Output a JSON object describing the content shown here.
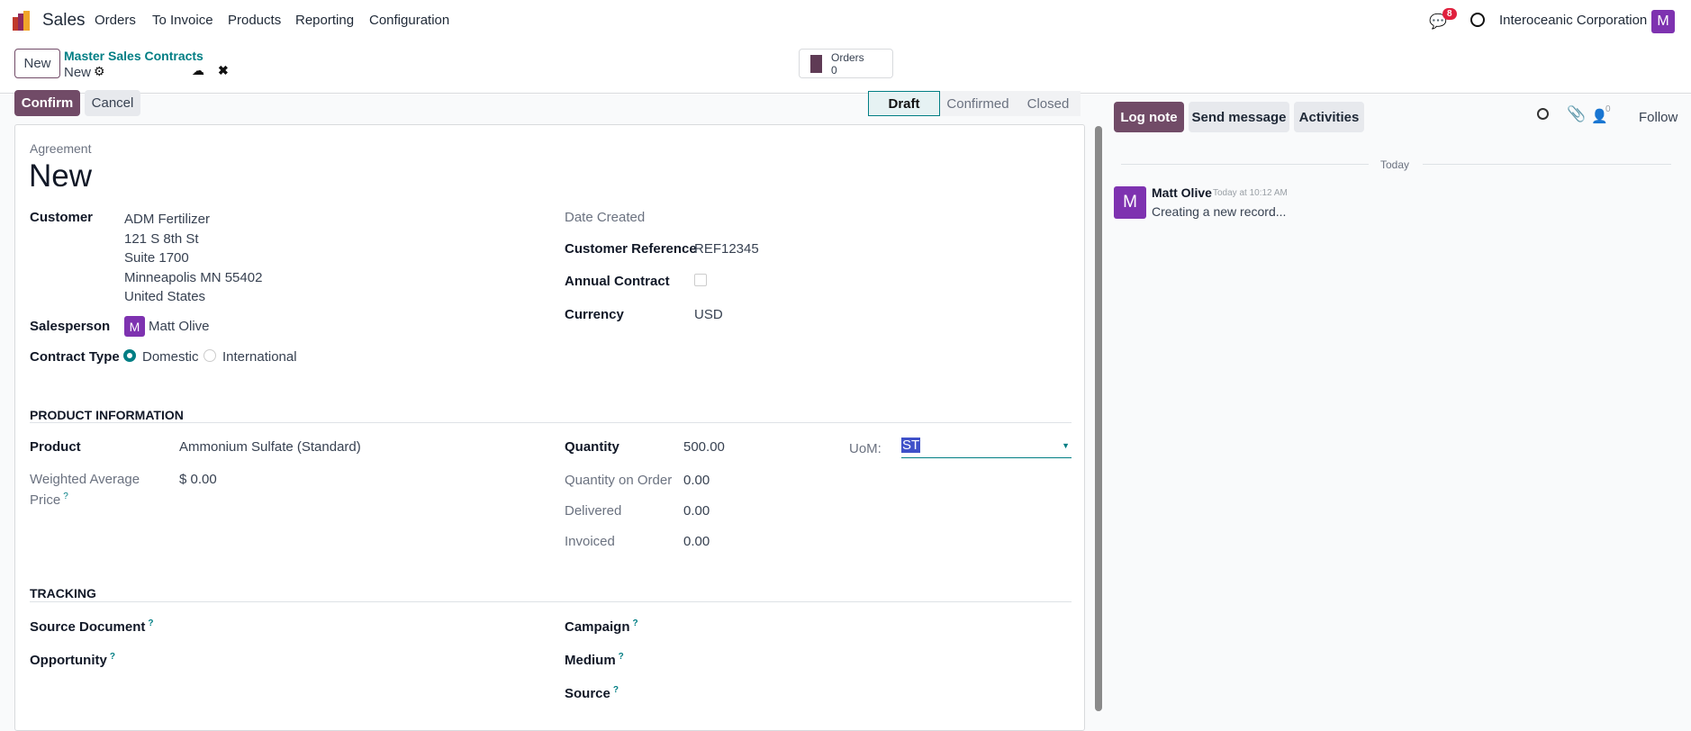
{
  "nav": {
    "app": "Sales",
    "menu": [
      "Orders",
      "To Invoice",
      "Products",
      "Reporting",
      "Configuration"
    ],
    "messages_badge": "8",
    "company": "Interoceanic Corporation",
    "user_initial": "M"
  },
  "control": {
    "new_button": "New",
    "breadcrumb_parent": "Master Sales Contracts",
    "breadcrumb_current": "New",
    "orders_label": "Orders",
    "orders_count": "0"
  },
  "actions": {
    "confirm": "Confirm",
    "cancel": "Cancel"
  },
  "status": {
    "stages": [
      "Draft",
      "Confirmed",
      "Closed"
    ],
    "current": "Draft"
  },
  "form": {
    "overline": "Agreement",
    "title": "New",
    "customer_label": "Customer",
    "customer_lines": [
      "ADM Fertilizer",
      "121 S 8th St",
      "Suite 1700",
      "Minneapolis MN 55402",
      "United States"
    ],
    "salesperson_label": "Salesperson",
    "salesperson_initial": "M",
    "salesperson": "Matt Olive",
    "contract_type_label": "Contract Type",
    "contract_types": [
      "Domestic",
      "International"
    ],
    "contract_type_selected": "Domestic",
    "date_created_label": "Date Created",
    "customer_ref_label": "Customer Reference",
    "customer_ref": "REF12345",
    "annual_contract_label": "Annual Contract",
    "annual_contract": false,
    "currency_label": "Currency",
    "currency": "USD",
    "product_section": "PRODUCT INFORMATION",
    "product_label": "Product",
    "product": "Ammonium Sulfate (Standard)",
    "wap_label_1": "Weighted Average",
    "wap_label_2": "Price",
    "wap": "$ 0.00",
    "quantity_label": "Quantity",
    "quantity": "500.00",
    "uom_label": "UoM:",
    "uom": "ST",
    "qty_order_label": "Quantity on Order",
    "qty_order": "0.00",
    "delivered_label": "Delivered",
    "delivered": "0.00",
    "invoiced_label": "Invoiced",
    "invoiced": "0.00",
    "tracking_section": "TRACKING",
    "source_doc_label": "Source Document",
    "opportunity_label": "Opportunity",
    "campaign_label": "Campaign",
    "medium_label": "Medium",
    "source_label": "Source",
    "help_mark": "?"
  },
  "chatter": {
    "log_note": "Log note",
    "send_message": "Send message",
    "activities": "Activities",
    "followers_count": "0",
    "follow": "Follow",
    "date_sep": "Today",
    "message": {
      "initial": "M",
      "author": "Matt Olive",
      "time": "Today at 10:12 AM",
      "body": "Creating a new record..."
    }
  },
  "colors": {
    "primary": "#714b67",
    "accent": "#017e84",
    "avatar": "#7e32b0",
    "badge": "#e0203d"
  }
}
